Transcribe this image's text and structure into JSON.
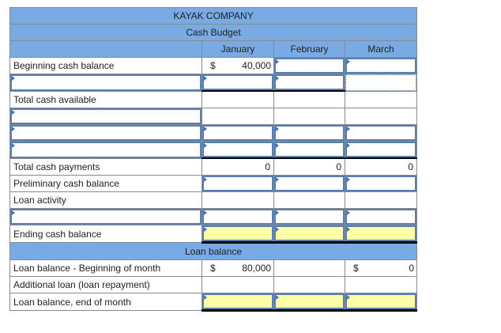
{
  "header": {
    "company": "KAYAK COMPANY",
    "title": "Cash Budget",
    "months": [
      "January",
      "February",
      "March"
    ]
  },
  "rows": {
    "beginning_cash": {
      "label": "Beginning cash balance",
      "currency": "$",
      "january": "40,000"
    },
    "total_cash_available": {
      "label": "Total cash available"
    },
    "total_cash_payments": {
      "label": "Total cash payments",
      "january": "0",
      "february": "0",
      "march": "0"
    },
    "preliminary_cash": {
      "label": "Preliminary cash balance"
    },
    "loan_activity": {
      "label": "Loan activity"
    },
    "ending_cash": {
      "label": "Ending cash balance"
    }
  },
  "loan": {
    "section_title": "Loan balance",
    "beginning": {
      "label": "Loan balance - Beginning of month",
      "currency": "$",
      "january": "80,000",
      "march_currency": "$",
      "march": "0"
    },
    "additional": {
      "label": "Additional loan (loan repayment)"
    },
    "end": {
      "label": "Loan balance, end of month"
    }
  },
  "colors": {
    "header_bg": "#78aae3",
    "input_border": "#5a7fae",
    "highlight": "#ffffa8"
  }
}
